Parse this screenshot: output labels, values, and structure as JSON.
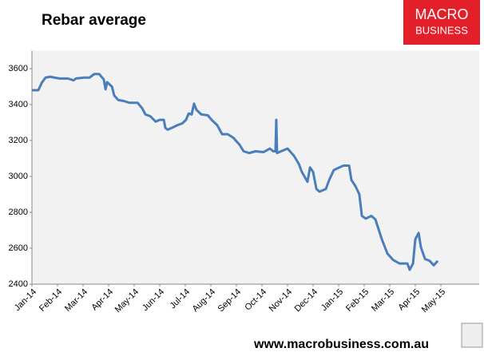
{
  "chart_data": {
    "type": "line",
    "title": "Rebar average",
    "logo": {
      "top": "MACRO",
      "bottom": "BUSINESS"
    },
    "footer": "www.macrobusiness.com.au",
    "x": [
      0,
      0.25,
      0.38,
      0.53,
      0.72,
      0.88,
      1.09,
      1.41,
      1.63,
      1.72,
      2.03,
      2.25,
      2.44,
      2.63,
      2.81,
      2.88,
      2.94,
      3.13,
      3.22,
      3.38,
      3.59,
      3.81,
      4.13,
      4.31,
      4.44,
      4.63,
      4.84,
      5,
      5.16,
      5.22,
      5.31,
      5.47,
      5.69,
      5.88,
      6.03,
      6.13,
      6.25,
      6.34,
      6.44,
      6.63,
      6.88,
      7.03,
      7.25,
      7.44,
      7.66,
      7.88,
      8.13,
      8.28,
      8.5,
      8.75,
      9.06,
      9.31,
      9.44,
      9.53,
      9.56,
      9.59,
      9.75,
      10,
      10.25,
      10.44,
      10.56,
      10.78,
      10.88,
      11,
      11.13,
      11.25,
      11.5,
      11.63,
      11.81,
      12.03,
      12.19,
      12.41,
      12.5,
      12.66,
      12.81,
      12.91,
      13.06,
      13.28,
      13.44,
      13.69,
      13.91,
      14.13,
      14.38,
      14.69,
      14.78,
      14.91,
      15,
      15.13,
      15.22,
      15.38,
      15.56,
      15.72,
      15.88
    ],
    "series": [
      {
        "name": "Rebar average",
        "color": "#4a7ebb",
        "values": [
          3480,
          3480,
          3520,
          3550,
          3555,
          3550,
          3545,
          3545,
          3535,
          3545,
          3550,
          3550,
          3570,
          3570,
          3540,
          3485,
          3525,
          3500,
          3450,
          3425,
          3420,
          3410,
          3410,
          3380,
          3345,
          3335,
          3305,
          3315,
          3315,
          3270,
          3260,
          3270,
          3285,
          3295,
          3315,
          3350,
          3345,
          3405,
          3370,
          3345,
          3340,
          3315,
          3285,
          3235,
          3235,
          3215,
          3175,
          3140,
          3130,
          3140,
          3135,
          3155,
          3140,
          3140,
          3315,
          3130,
          3140,
          3155,
          3115,
          3070,
          3025,
          2970,
          3050,
          3025,
          2930,
          2915,
          2930,
          2980,
          3035,
          3050,
          3060,
          3060,
          2980,
          2945,
          2900,
          2780,
          2765,
          2780,
          2760,
          2650,
          2570,
          2535,
          2515,
          2515,
          2480,
          2515,
          2650,
          2685,
          2605,
          2540,
          2530,
          2505,
          2530
        ]
      }
    ],
    "xlim": [
      0,
      17.5
    ],
    "xticks": [
      {
        "value": 0,
        "label": "Jan-14"
      },
      {
        "value": 1,
        "label": "Feb-14"
      },
      {
        "value": 2,
        "label": "Mar-14"
      },
      {
        "value": 3,
        "label": "Apr-14"
      },
      {
        "value": 4,
        "label": "May-14"
      },
      {
        "value": 5,
        "label": "Jun-14"
      },
      {
        "value": 6,
        "label": "Jul-14"
      },
      {
        "value": 7,
        "label": "Aug-14"
      },
      {
        "value": 8,
        "label": "Sep-14"
      },
      {
        "value": 9,
        "label": "Oct-14"
      },
      {
        "value": 10,
        "label": "Nov-14"
      },
      {
        "value": 11,
        "label": "Dec-14"
      },
      {
        "value": 12,
        "label": "Jan-15"
      },
      {
        "value": 13,
        "label": "Feb-15"
      },
      {
        "value": 14,
        "label": "Mar-15"
      },
      {
        "value": 15,
        "label": "Apr-15"
      },
      {
        "value": 16,
        "label": "May-15"
      }
    ],
    "ylim": [
      2400,
      3700
    ],
    "yticks": [
      2400,
      2600,
      2800,
      3000,
      3200,
      3400,
      3600
    ],
    "grid": false
  }
}
